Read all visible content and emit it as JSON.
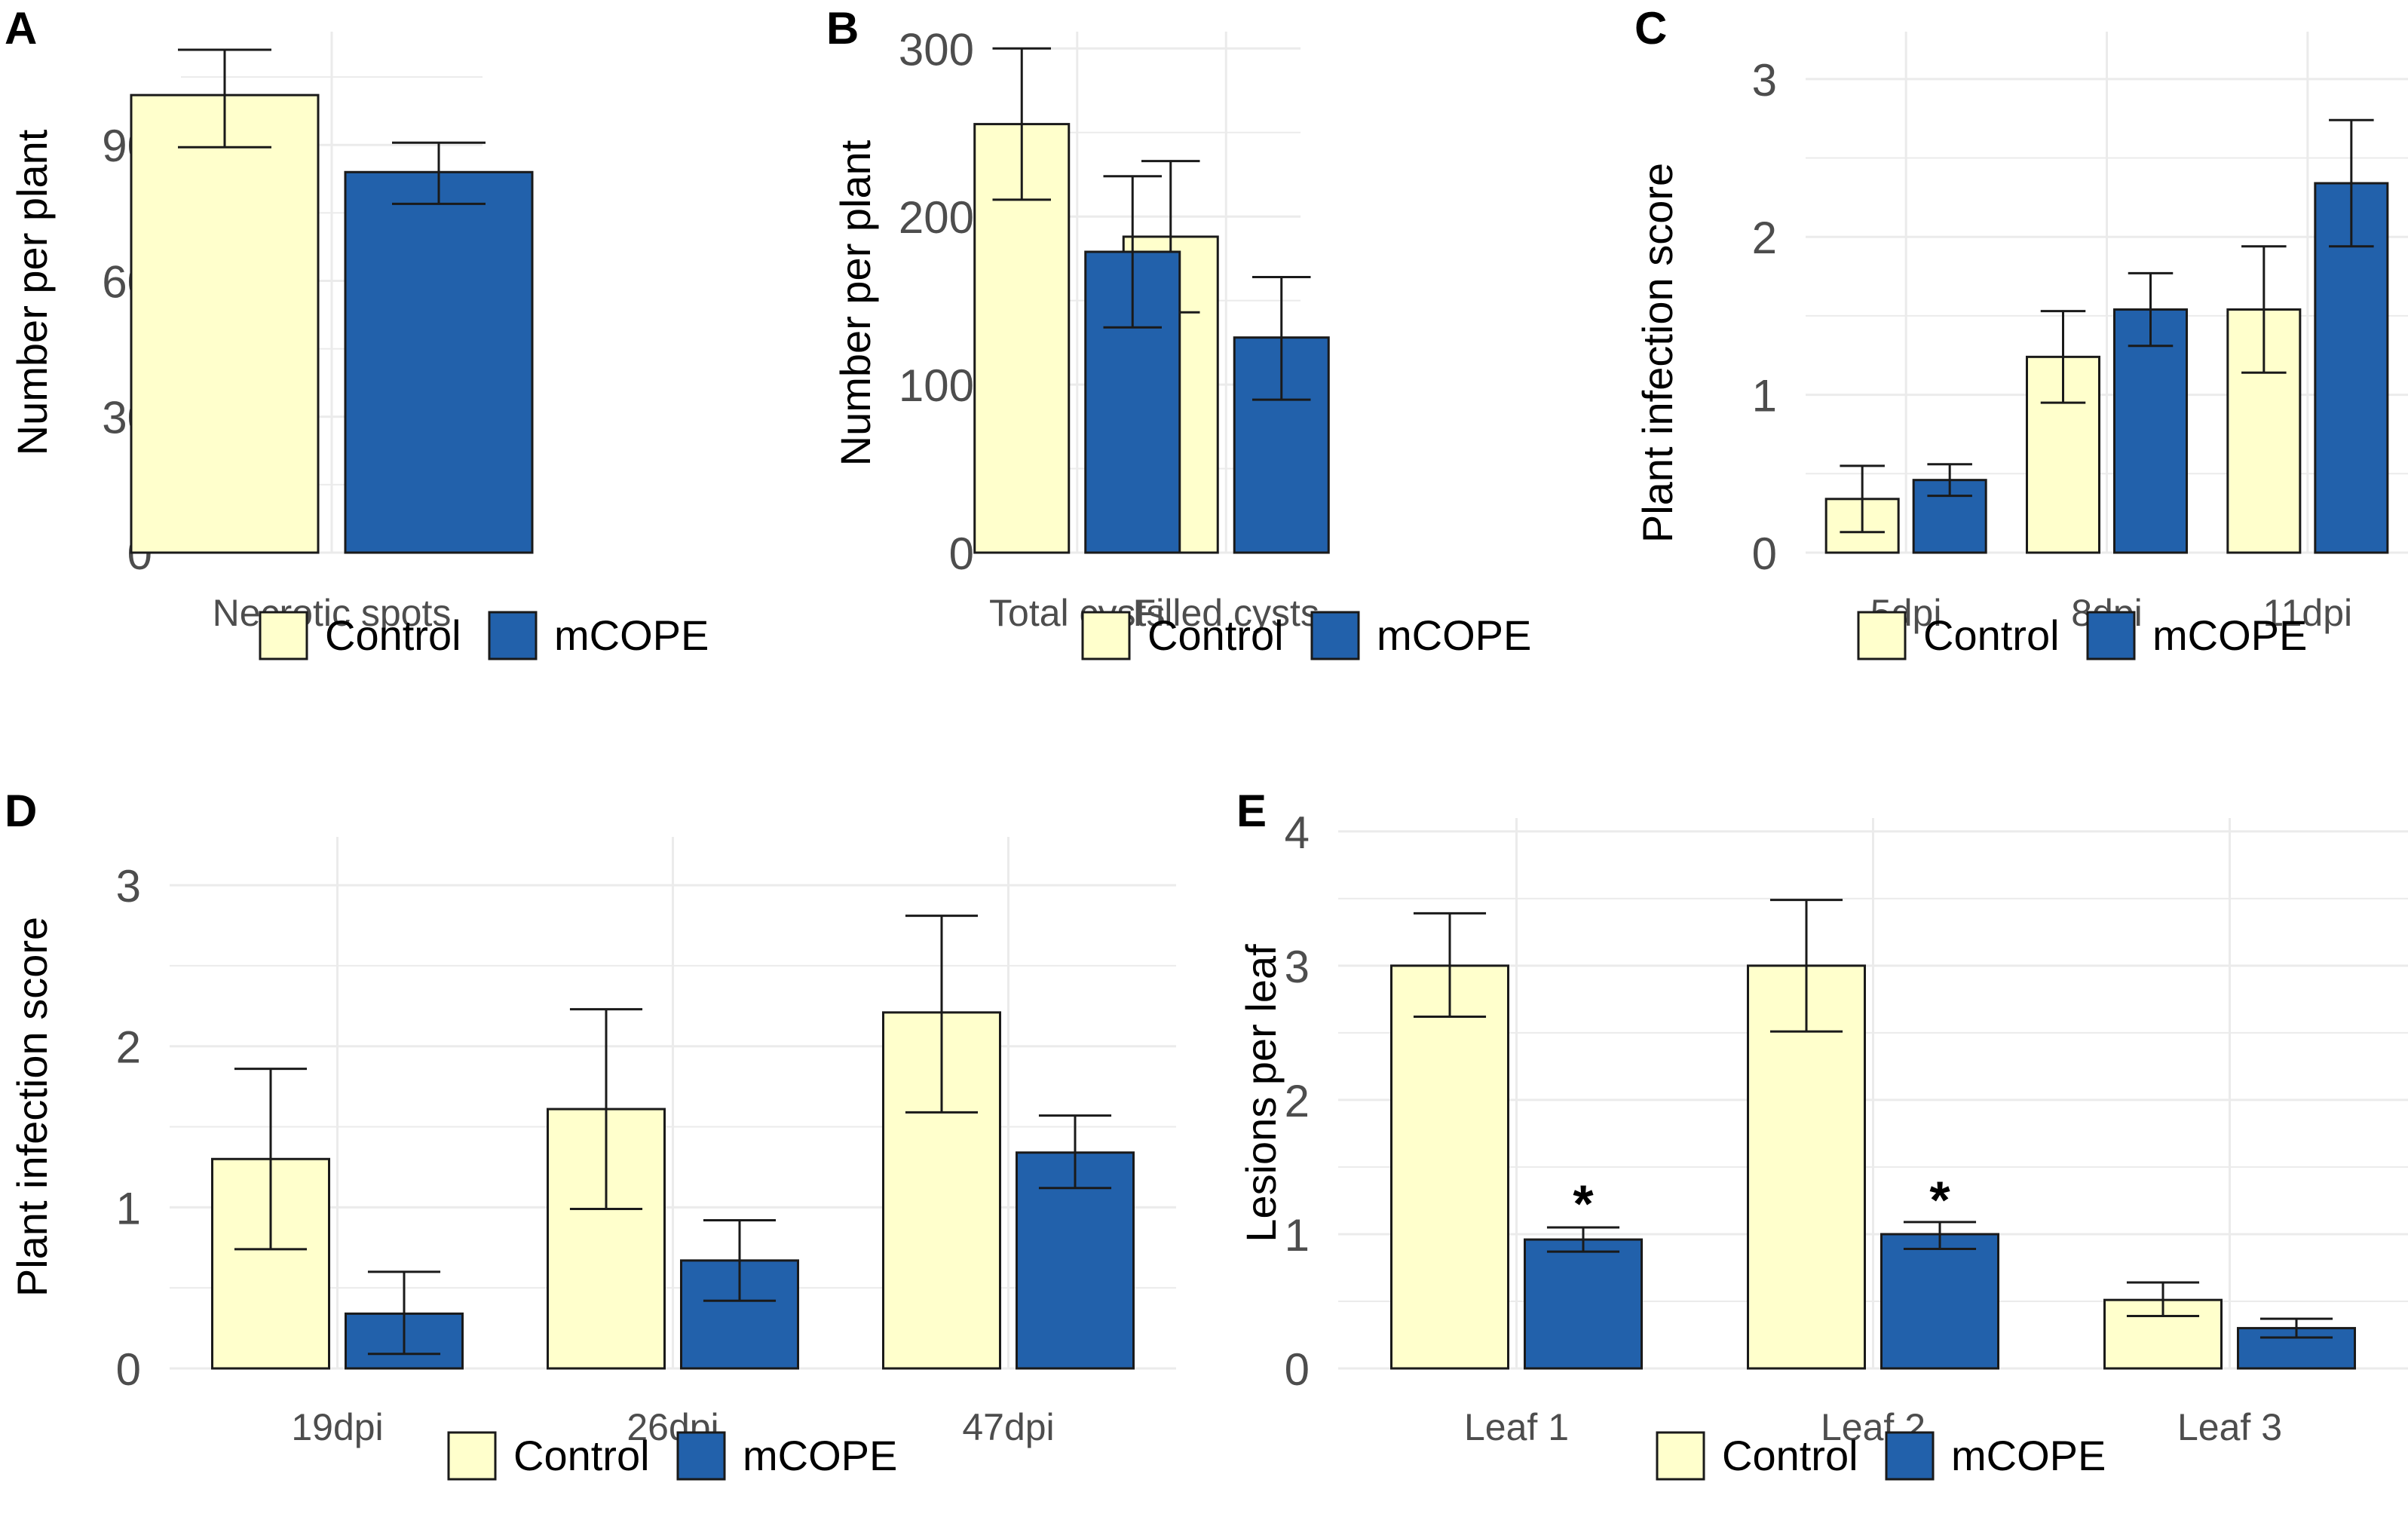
{
  "colors": {
    "control": "#ffffcc",
    "mcope": "#2261ab",
    "grid": "#ebebeb",
    "bar_stroke": "#1a1a1a",
    "error": "#1a1a1a"
  },
  "legend_labels": [
    "Control",
    "mCOPE"
  ],
  "chart_data": [
    {
      "letter": "A",
      "type": "bar",
      "ylabel": "Number per plant",
      "categories": [
        "Necrotic spots"
      ],
      "ylim": [
        0,
        115
      ],
      "yticks": [
        0,
        30,
        60,
        90
      ],
      "yticks_text": [
        "0",
        "30",
        "60",
        "90"
      ],
      "series": [
        {
          "name": "Control",
          "values": [
            101
          ],
          "err_low": [
            89.5
          ],
          "err_high": [
            111
          ]
        },
        {
          "name": "mCOPE",
          "values": [
            84
          ],
          "err_low": [
            77
          ],
          "err_high": [
            90.5
          ]
        }
      ],
      "annotations": []
    },
    {
      "letter": "B",
      "type": "bar",
      "ylabel": "Number per plant",
      "categories": [
        "Total cysts",
        "Filled cysts"
      ],
      "ylim": [
        0,
        310
      ],
      "yticks": [
        0,
        100,
        200,
        300
      ],
      "yticks_text": [
        "0",
        "100",
        "200",
        "300"
      ],
      "series": [
        {
          "name": "Control",
          "values": [
            255,
            188
          ],
          "err_low": [
            210,
            143
          ],
          "err_high": [
            300,
            233
          ]
        },
        {
          "name": "mCOPE",
          "values": [
            179,
            128
          ],
          "err_low": [
            134,
            91
          ],
          "err_high": [
            224,
            164
          ]
        }
      ],
      "annotations": []
    },
    {
      "letter": "C",
      "type": "bar",
      "ylabel": "Plant infection score",
      "categories": [
        "5dpi",
        "8dpi",
        "11dpi"
      ],
      "ylim": [
        0,
        3.3
      ],
      "yticks": [
        0,
        1,
        2,
        3
      ],
      "yticks_text": [
        "0",
        "1",
        "2",
        "3"
      ],
      "series": [
        {
          "name": "Control",
          "values": [
            0.34,
            1.24,
            1.54
          ],
          "err_low": [
            0.13,
            0.95,
            1.14
          ],
          "err_high": [
            0.55,
            1.53,
            1.94
          ]
        },
        {
          "name": "mCOPE",
          "values": [
            0.46,
            1.54,
            2.34
          ],
          "err_low": [
            0.36,
            1.31,
            1.94
          ],
          "err_high": [
            0.56,
            1.77,
            2.74
          ]
        }
      ],
      "annotations": []
    },
    {
      "letter": "D",
      "type": "bar",
      "ylabel": "Plant infection score",
      "categories": [
        "19dpi",
        "26dpi",
        "47dpi"
      ],
      "ylim": [
        0,
        3.3
      ],
      "yticks": [
        0,
        1,
        2,
        3
      ],
      "yticks_text": [
        "0",
        "1",
        "2",
        "3"
      ],
      "series": [
        {
          "name": "Control",
          "values": [
            1.3,
            1.61,
            2.21
          ],
          "err_low": [
            0.74,
            0.99,
            1.59
          ],
          "err_high": [
            1.86,
            2.23,
            2.81
          ]
        },
        {
          "name": "mCOPE",
          "values": [
            0.34,
            0.67,
            1.34
          ],
          "err_low": [
            0.09,
            0.42,
            1.12
          ],
          "err_high": [
            0.6,
            0.92,
            1.57
          ]
        }
      ],
      "annotations": []
    },
    {
      "letter": "E",
      "type": "bar",
      "ylabel": "Lesions per leaf",
      "categories": [
        "Leaf 1",
        "Leaf 2",
        "Leaf 3"
      ],
      "ylim": [
        0,
        4.1
      ],
      "yticks": [
        0,
        1,
        2,
        3,
        4
      ],
      "yticks_text": [
        "0",
        "1",
        "2",
        "3",
        "4"
      ],
      "series": [
        {
          "name": "Control",
          "values": [
            3.0,
            3.0,
            0.51
          ],
          "err_low": [
            2.62,
            2.51,
            0.39
          ],
          "err_high": [
            3.39,
            3.49,
            0.64
          ]
        },
        {
          "name": "mCOPE",
          "values": [
            0.96,
            1.0,
            0.3
          ],
          "err_low": [
            0.87,
            0.89,
            0.23
          ],
          "err_high": [
            1.05,
            1.09,
            0.37
          ]
        }
      ],
      "annotations": [
        {
          "text": "*",
          "category_index": 0,
          "series_index": 1,
          "y": 1.35
        },
        {
          "text": "*",
          "category_index": 1,
          "series_index": 1,
          "y": 1.38
        }
      ]
    }
  ]
}
